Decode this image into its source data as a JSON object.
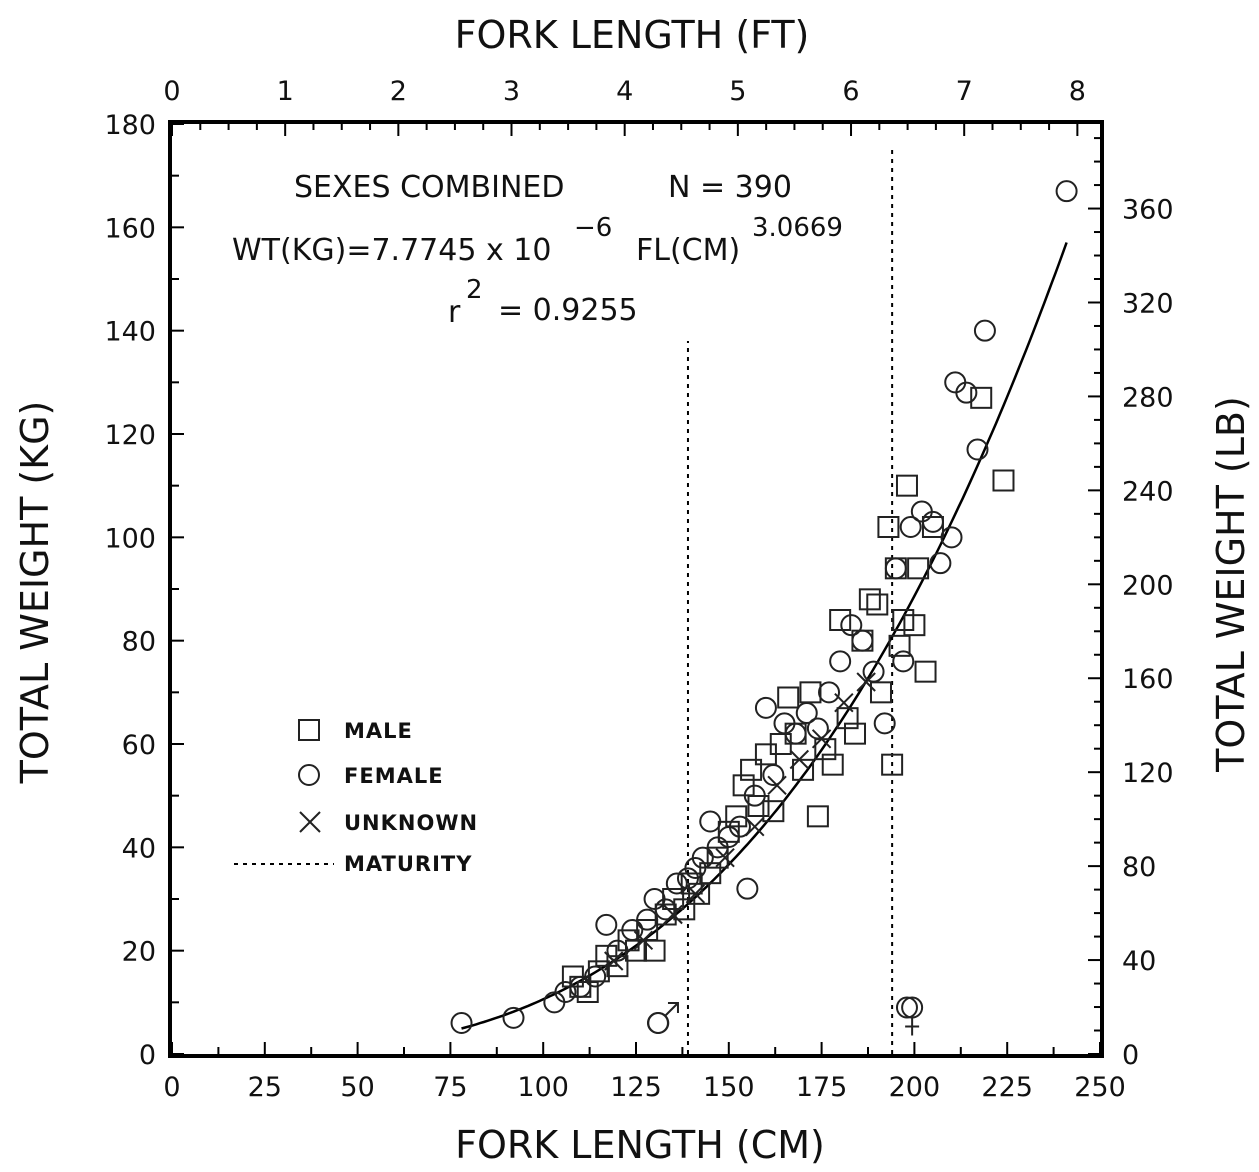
{
  "chart_data": {
    "type": "scatter",
    "xlabel": "FORK LENGTH (CM)",
    "x2label": "FORK LENGTH (FT)",
    "ylabel": "TOTAL WEIGHT (KG)",
    "y2label": "TOTAL WEIGHT (LB)",
    "xlim": [
      0,
      250
    ],
    "ylim": [
      0,
      180
    ],
    "x2lim": [
      0,
      8.2
    ],
    "y2lim": [
      0,
      396
    ],
    "x_ticks": [
      "0",
      "25",
      "50",
      "75",
      "100",
      "125",
      "150",
      "175",
      "200",
      "225",
      "250"
    ],
    "y_ticks": [
      "0",
      "20",
      "40",
      "60",
      "80",
      "100",
      "120",
      "140",
      "160",
      "180"
    ],
    "x2_ticks": [
      "0",
      "1",
      "2",
      "3",
      "4",
      "5",
      "6",
      "7",
      "8"
    ],
    "y2_ticks": [
      "0",
      "40",
      "80",
      "120",
      "160",
      "200",
      "240",
      "280",
      "320",
      "360"
    ],
    "grid": false,
    "legend_position": "center-left",
    "annotations": {
      "group": "SEXES COMBINED",
      "n": "N = 390",
      "eq_main": "WT(KG)=7.7745 x 10",
      "eq_exp1": "−6",
      "eq_mid": "FL(CM)",
      "eq_exp2": "3.0669",
      "r2_base": "r",
      "r2_exp": "2",
      "r2_val": "= 0.9255"
    },
    "fit": {
      "a": 7.7745e-06,
      "b": 3.0669,
      "x_range": [
        78,
        241
      ]
    },
    "maturity_markers": {
      "male": {
        "x": 139,
        "symbol": "♂",
        "ymax": 138
      },
      "female": {
        "x": 194,
        "symbol": "♀",
        "ymax": 175
      }
    },
    "legend": [
      {
        "symbol": "square",
        "label": "MALE"
      },
      {
        "symbol": "circle",
        "label": "FEMALE"
      },
      {
        "symbol": "cross",
        "label": "UNKNOWN"
      },
      {
        "symbol": "dashed",
        "label": "MATURITY"
      }
    ],
    "series": [
      {
        "name": "MALE",
        "marker": "square",
        "points": [
          [
            108,
            15
          ],
          [
            110,
            13
          ],
          [
            112,
            12
          ],
          [
            115,
            16
          ],
          [
            117,
            19
          ],
          [
            120,
            17
          ],
          [
            123,
            22
          ],
          [
            125,
            20
          ],
          [
            128,
            24
          ],
          [
            130,
            20
          ],
          [
            133,
            27
          ],
          [
            135,
            30
          ],
          [
            138,
            28
          ],
          [
            140,
            33
          ],
          [
            142,
            31
          ],
          [
            145,
            35
          ],
          [
            147,
            38
          ],
          [
            150,
            43
          ],
          [
            152,
            46
          ],
          [
            154,
            52
          ],
          [
            156,
            55
          ],
          [
            158,
            48
          ],
          [
            160,
            58
          ],
          [
            162,
            47
          ],
          [
            164,
            60
          ],
          [
            166,
            69
          ],
          [
            168,
            62
          ],
          [
            170,
            55
          ],
          [
            172,
            70
          ],
          [
            174,
            46
          ],
          [
            176,
            59
          ],
          [
            178,
            56
          ],
          [
            180,
            84
          ],
          [
            182,
            65
          ],
          [
            184,
            62
          ],
          [
            186,
            80
          ],
          [
            188,
            88
          ],
          [
            190,
            87
          ],
          [
            191,
            70
          ],
          [
            193,
            102
          ],
          [
            194,
            56
          ],
          [
            195,
            94
          ],
          [
            196,
            79
          ],
          [
            197,
            84
          ],
          [
            198,
            110
          ],
          [
            200,
            83
          ],
          [
            201,
            94
          ],
          [
            203,
            74
          ],
          [
            205,
            102
          ],
          [
            218,
            127
          ],
          [
            224,
            111
          ]
        ]
      },
      {
        "name": "FEMALE",
        "marker": "circle",
        "points": [
          [
            78,
            6
          ],
          [
            92,
            7
          ],
          [
            103,
            10
          ],
          [
            106,
            12
          ],
          [
            110,
            13
          ],
          [
            114,
            15
          ],
          [
            117,
            25
          ],
          [
            120,
            20
          ],
          [
            124,
            24
          ],
          [
            128,
            26
          ],
          [
            130,
            30
          ],
          [
            133,
            28
          ],
          [
            136,
            33
          ],
          [
            139,
            34
          ],
          [
            141,
            36
          ],
          [
            143,
            38
          ],
          [
            145,
            45
          ],
          [
            147,
            40
          ],
          [
            150,
            42
          ],
          [
            153,
            44
          ],
          [
            155,
            32
          ],
          [
            157,
            50
          ],
          [
            160,
            67
          ],
          [
            162,
            54
          ],
          [
            165,
            64
          ],
          [
            168,
            62
          ],
          [
            171,
            66
          ],
          [
            174,
            63
          ],
          [
            177,
            70
          ],
          [
            180,
            76
          ],
          [
            183,
            83
          ],
          [
            186,
            80
          ],
          [
            189,
            74
          ],
          [
            192,
            64
          ],
          [
            195,
            94
          ],
          [
            197,
            76
          ],
          [
            199,
            102
          ],
          [
            202,
            105
          ],
          [
            205,
            103
          ],
          [
            207,
            95
          ],
          [
            210,
            100
          ],
          [
            211,
            130
          ],
          [
            214,
            128
          ],
          [
            217,
            117
          ],
          [
            219,
            140
          ],
          [
            241,
            167
          ],
          [
            131,
            6
          ],
          [
            198,
            9
          ]
        ]
      },
      {
        "name": "UNKNOWN",
        "marker": "cross",
        "points": [
          [
            119,
            18
          ],
          [
            127,
            22
          ],
          [
            135,
            27
          ],
          [
            141,
            31
          ],
          [
            149,
            38
          ],
          [
            157,
            44
          ],
          [
            163,
            52
          ],
          [
            169,
            57
          ],
          [
            175,
            61
          ],
          [
            181,
            68
          ],
          [
            187,
            72
          ]
        ]
      }
    ]
  }
}
